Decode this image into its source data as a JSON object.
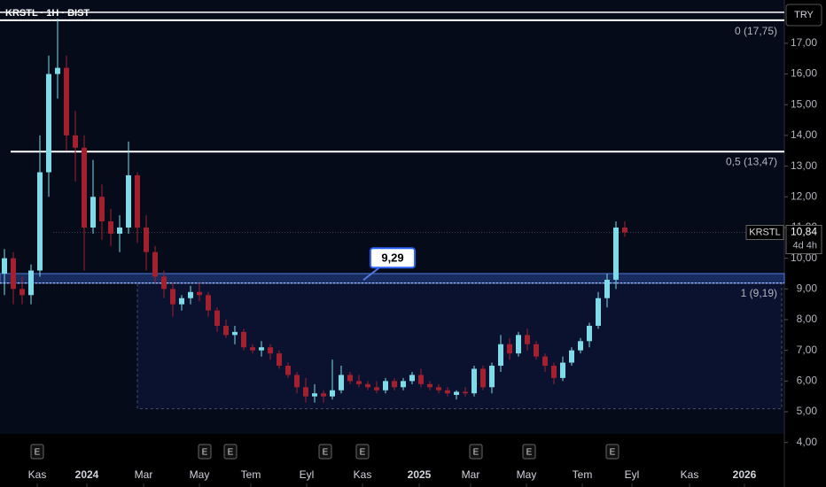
{
  "chart_data": {
    "type": "candlestick",
    "title": "KRSTL · 1H · BIST",
    "currency": "TRY",
    "x": [
      0,
      1,
      2,
      3,
      4,
      5,
      6,
      7,
      8,
      9,
      10,
      11,
      12,
      13,
      14,
      15,
      16,
      17,
      18,
      19,
      20,
      21,
      22,
      23,
      24,
      25,
      26,
      27,
      28,
      29,
      30,
      31,
      32,
      33,
      34,
      35,
      36,
      37,
      38,
      39,
      40,
      41,
      42,
      43,
      44,
      45,
      46,
      47,
      48,
      49,
      50,
      51,
      52,
      53,
      54,
      55,
      56,
      57,
      58,
      59,
      60,
      61,
      62,
      63,
      64,
      65,
      66,
      67,
      68,
      69,
      70
    ],
    "open": [
      9.5,
      10,
      9.0,
      8.8,
      9.6,
      12.8,
      16,
      16.2,
      14,
      13.6,
      11,
      12,
      11.2,
      10.8,
      11,
      12.7,
      11,
      10.2,
      9.4,
      9,
      8.5,
      8.7,
      8.9,
      8.8,
      8.3,
      7.8,
      7.5,
      7.6,
      7.1,
      7.0,
      7.1,
      6.9,
      6.5,
      6.2,
      5.8,
      5.5,
      5.6,
      5.5,
      5.7,
      6.2,
      6.0,
      5.9,
      5.8,
      5.7,
      6.0,
      5.8,
      6.0,
      6.2,
      5.9,
      5.8,
      5.7,
      5.55,
      5.65,
      5.6,
      6.4,
      5.8,
      6.5,
      7.2,
      6.9,
      7.5,
      7.2,
      6.8,
      6.5,
      6.1,
      6.6,
      7.0,
      7.3,
      7.8,
      8.7,
      9.3,
      11.0
    ],
    "high": [
      10.3,
      10.2,
      9.4,
      9.8,
      14,
      16.6,
      17.8,
      16.6,
      14.8,
      14,
      13.2,
      12.4,
      11.6,
      11.4,
      13.8,
      12.8,
      11.4,
      10.4,
      9.6,
      9.2,
      8.8,
      9.1,
      9.2,
      8.9,
      8.4,
      8.0,
      7.8,
      7.7,
      7.2,
      7.3,
      7.2,
      7.0,
      6.6,
      6.3,
      6.1,
      5.9,
      5.7,
      6.7,
      6.5,
      6.3,
      6.2,
      6.0,
      6.0,
      6.1,
      6.1,
      6.1,
      6.3,
      6.4,
      6.0,
      5.9,
      5.8,
      5.7,
      5.8,
      6.5,
      6.5,
      6.6,
      7.5,
      7.4,
      7.6,
      7.7,
      7.3,
      6.9,
      6.6,
      6.8,
      7.1,
      7.4,
      7.9,
      8.9,
      9.5,
      11.2,
      11.2
    ],
    "low": [
      8.8,
      8.5,
      8.5,
      8.5,
      9.4,
      12,
      15.2,
      13.5,
      12.5,
      9.6,
      10.8,
      10.6,
      10.4,
      10.2,
      10.8,
      10.5,
      9.6,
      9.2,
      8.7,
      8.1,
      8.3,
      8.5,
      8.6,
      8.1,
      7.6,
      7.4,
      7.2,
      7.0,
      6.9,
      6.8,
      6.7,
      6.4,
      6.1,
      5.6,
      5.3,
      5.3,
      5.3,
      5.4,
      5.6,
      5.9,
      5.8,
      5.7,
      5.6,
      5.6,
      5.7,
      5.7,
      5.9,
      5.8,
      5.7,
      5.6,
      5.5,
      5.4,
      5.5,
      5.5,
      5.7,
      5.6,
      6.3,
      6.7,
      6.8,
      7.0,
      6.7,
      6.3,
      5.9,
      6.0,
      6.5,
      6.9,
      7.1,
      7.7,
      8.4,
      9.0,
      10.7
    ],
    "close": [
      10.0,
      9.0,
      8.8,
      9.6,
      12.8,
      16,
      16.2,
      14,
      13.6,
      11,
      12,
      11.2,
      10.8,
      11,
      12.7,
      11,
      10.2,
      9.4,
      9,
      8.5,
      8.7,
      8.9,
      8.8,
      8.3,
      7.8,
      7.5,
      7.6,
      7.1,
      7.0,
      7.1,
      6.9,
      6.5,
      6.2,
      5.8,
      5.5,
      5.6,
      5.5,
      5.7,
      6.2,
      6.0,
      5.9,
      5.8,
      5.7,
      6.0,
      5.8,
      6.0,
      6.2,
      5.9,
      5.8,
      5.7,
      5.6,
      5.65,
      5.6,
      6.4,
      5.8,
      6.5,
      7.2,
      6.9,
      7.5,
      7.2,
      6.8,
      6.5,
      6.1,
      6.6,
      7.0,
      7.3,
      7.8,
      8.7,
      9.3,
      11.0,
      10.84
    ],
    "up_color": "#7fdbe8",
    "down_color": "#a3202f",
    "xlim": [
      -0.5,
      88
    ],
    "xticks": [
      {
        "value": 3.7,
        "label": "Kas"
      },
      {
        "value": 9.3,
        "label": "2024"
      },
      {
        "value": 15.7,
        "label": "Mar"
      },
      {
        "value": 22,
        "label": "May"
      },
      {
        "value": 27.8,
        "label": "Tem"
      },
      {
        "value": 34.1,
        "label": "Eyl"
      },
      {
        "value": 40.4,
        "label": "Kas"
      },
      {
        "value": 46.8,
        "label": "2025"
      },
      {
        "value": 52.6,
        "label": "Mar"
      },
      {
        "value": 58.9,
        "label": "May"
      },
      {
        "value": 65.2,
        "label": "Tem"
      },
      {
        "value": 70.8,
        "label": "Eyl"
      },
      {
        "value": 77.3,
        "label": "Kas"
      },
      {
        "value": 83.5,
        "label": "2026"
      }
    ],
    "ylim": [
      2.55,
      18.41
    ],
    "yticks": [
      {
        "value": 4,
        "label": "4,00"
      },
      {
        "value": 5,
        "label": "5,00"
      },
      {
        "value": 6,
        "label": "6,00"
      },
      {
        "value": 7,
        "label": "7,00"
      },
      {
        "value": 8,
        "label": "8,00"
      },
      {
        "value": 9,
        "label": "9,00"
      },
      {
        "value": 10,
        "label": "10,00"
      },
      {
        "value": 11,
        "label": "11,00"
      },
      {
        "value": 12,
        "label": "12,00"
      },
      {
        "value": 13,
        "label": "13,00"
      },
      {
        "value": 14,
        "label": "14,00"
      },
      {
        "value": 15,
        "label": "15,00"
      },
      {
        "value": 16,
        "label": "16,00"
      },
      {
        "value": 17,
        "label": "17,00"
      }
    ],
    "levels": [
      {
        "value": 17.75,
        "label": "0 (17,75)"
      },
      {
        "value": 13.47,
        "label": "0,5 (13,47)"
      },
      {
        "value": 9.19,
        "label": "1 (9,19)"
      }
    ],
    "band": {
      "low": 9.19,
      "high": 9.5
    },
    "box": {
      "x0": 15,
      "x1": 88,
      "low": 5.1,
      "high": 9.19
    },
    "callout": {
      "x": 40.5,
      "value": 9.29,
      "label": "9,29"
    },
    "last_price": {
      "symbol": "KRSTL",
      "value": 10.84,
      "label": "10,84",
      "countdown": "4d 4h"
    },
    "event_label": "E",
    "events": [
      3.7,
      22.6,
      25.5,
      36.2,
      40.4,
      53.2,
      59.2,
      68.6
    ]
  }
}
